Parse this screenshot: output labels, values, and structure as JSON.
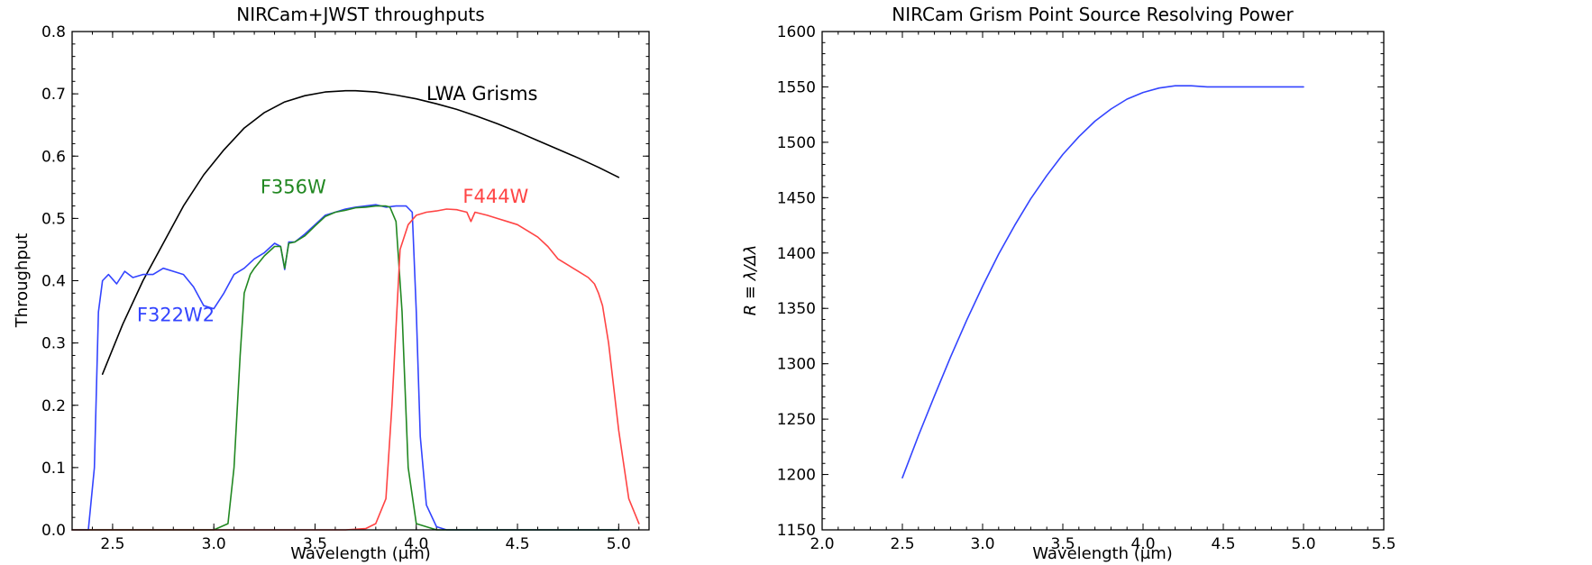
{
  "chart_data": [
    {
      "type": "line",
      "title": "NIRCam+JWST throughputs",
      "xlabel": "Wavelength (μm)",
      "ylabel": "Throughput",
      "xlim": [
        2.3,
        5.15
      ],
      "ylim": [
        0.0,
        0.8
      ],
      "x_tick_labels": [
        "2.5",
        "3.0",
        "3.5",
        "4.0",
        "4.5",
        "5.0"
      ],
      "x_ticks": [
        2.5,
        3.0,
        3.5,
        4.0,
        4.5,
        5.0
      ],
      "y_tick_labels": [
        "0.0",
        "0.1",
        "0.2",
        "0.3",
        "0.4",
        "0.5",
        "0.6",
        "0.7",
        "0.8"
      ],
      "y_ticks": [
        0.0,
        0.1,
        0.2,
        0.3,
        0.4,
        0.5,
        0.6,
        0.7,
        0.8
      ],
      "grid": false,
      "legend": "none",
      "series": [
        {
          "name": "LWA Grisms",
          "color": "#000000",
          "x": [
            2.45,
            2.55,
            2.65,
            2.75,
            2.85,
            2.95,
            3.05,
            3.15,
            3.25,
            3.35,
            3.45,
            3.55,
            3.65,
            3.7,
            3.8,
            3.9,
            4.0,
            4.1,
            4.2,
            4.3,
            4.4,
            4.5,
            4.6,
            4.7,
            4.8,
            4.9,
            5.0
          ],
          "y": [
            0.25,
            0.33,
            0.4,
            0.46,
            0.52,
            0.57,
            0.61,
            0.645,
            0.67,
            0.687,
            0.697,
            0.703,
            0.705,
            0.705,
            0.703,
            0.698,
            0.692,
            0.684,
            0.675,
            0.664,
            0.652,
            0.639,
            0.625,
            0.611,
            0.597,
            0.582,
            0.566
          ]
        },
        {
          "name": "F322W2",
          "color": "#3344ff",
          "x": [
            2.3,
            2.38,
            2.41,
            2.43,
            2.45,
            2.48,
            2.52,
            2.56,
            2.6,
            2.65,
            2.7,
            2.75,
            2.8,
            2.85,
            2.9,
            2.95,
            3.0,
            3.05,
            3.1,
            3.15,
            3.2,
            3.25,
            3.3,
            3.33,
            3.35,
            3.37,
            3.4,
            3.45,
            3.5,
            3.55,
            3.6,
            3.65,
            3.7,
            3.75,
            3.8,
            3.85,
            3.9,
            3.95,
            3.98,
            4.0,
            4.02,
            4.05,
            4.1,
            4.15,
            4.2,
            5.0
          ],
          "y": [
            0.0,
            0.0,
            0.1,
            0.35,
            0.4,
            0.41,
            0.395,
            0.415,
            0.405,
            0.41,
            0.41,
            0.42,
            0.415,
            0.41,
            0.39,
            0.36,
            0.355,
            0.38,
            0.41,
            0.42,
            0.435,
            0.445,
            0.46,
            0.455,
            0.418,
            0.462,
            0.462,
            0.475,
            0.49,
            0.505,
            0.51,
            0.515,
            0.518,
            0.52,
            0.522,
            0.518,
            0.52,
            0.52,
            0.51,
            0.35,
            0.15,
            0.04,
            0.005,
            0.0,
            0.0,
            0.0
          ]
        },
        {
          "name": "F356W",
          "color": "#228822",
          "x": [
            2.3,
            3.0,
            3.07,
            3.1,
            3.13,
            3.15,
            3.18,
            3.2,
            3.25,
            3.3,
            3.33,
            3.35,
            3.37,
            3.4,
            3.45,
            3.5,
            3.55,
            3.6,
            3.65,
            3.7,
            3.75,
            3.8,
            3.85,
            3.87,
            3.9,
            3.93,
            3.96,
            4.0,
            4.1,
            5.0
          ],
          "y": [
            0.0,
            0.0,
            0.01,
            0.1,
            0.28,
            0.38,
            0.41,
            0.42,
            0.44,
            0.455,
            0.455,
            0.42,
            0.46,
            0.462,
            0.472,
            0.488,
            0.503,
            0.51,
            0.513,
            0.517,
            0.518,
            0.52,
            0.52,
            0.518,
            0.495,
            0.35,
            0.1,
            0.01,
            0.0,
            0.0
          ]
        },
        {
          "name": "F444W",
          "color": "#ff4444",
          "x": [
            2.3,
            3.65,
            3.75,
            3.8,
            3.85,
            3.88,
            3.92,
            3.96,
            4.0,
            4.05,
            4.1,
            4.15,
            4.2,
            4.25,
            4.27,
            4.29,
            4.35,
            4.4,
            4.45,
            4.5,
            4.55,
            4.6,
            4.65,
            4.7,
            4.75,
            4.8,
            4.85,
            4.88,
            4.9,
            4.92,
            4.95,
            5.0,
            5.05,
            5.1
          ],
          "y": [
            0.0,
            0.0,
            0.002,
            0.01,
            0.05,
            0.2,
            0.45,
            0.49,
            0.505,
            0.51,
            0.512,
            0.515,
            0.514,
            0.51,
            0.495,
            0.51,
            0.505,
            0.5,
            0.495,
            0.49,
            0.48,
            0.47,
            0.455,
            0.435,
            0.425,
            0.415,
            0.405,
            0.395,
            0.38,
            0.36,
            0.3,
            0.16,
            0.05,
            0.01
          ]
        }
      ],
      "annotations": [
        {
          "text": "LWA Grisms",
          "color": "#000000",
          "x": 4.05,
          "y": 0.69
        },
        {
          "text": "F356W",
          "color": "#228822",
          "x": 3.23,
          "y": 0.54
        },
        {
          "text": "F444W",
          "color": "#ff4444",
          "x": 4.23,
          "y": 0.525
        },
        {
          "text": "F322W2",
          "color": "#3344ff",
          "x": 2.62,
          "y": 0.335
        }
      ]
    },
    {
      "type": "line",
      "title": "NIRCam Grism Point Source Resolving Power",
      "xlabel": "Wavelength (μm)",
      "ylabel": "R ≡ λ/Δλ",
      "xlim": [
        2.0,
        5.5
      ],
      "ylim": [
        1150,
        1600
      ],
      "x_tick_labels": [
        "2.0",
        "2.5",
        "3.0",
        "3.5",
        "4.0",
        "4.5",
        "5.0",
        "5.5"
      ],
      "x_ticks": [
        2.0,
        2.5,
        3.0,
        3.5,
        4.0,
        4.5,
        5.0,
        5.5
      ],
      "y_tick_labels": [
        "1150",
        "1200",
        "1250",
        "1300",
        "1350",
        "1400",
        "1450",
        "1500",
        "1550",
        "1600"
      ],
      "y_ticks": [
        1150,
        1200,
        1250,
        1300,
        1350,
        1400,
        1450,
        1500,
        1550,
        1600
      ],
      "grid": false,
      "legend": "none",
      "series": [
        {
          "color": "#3344ff",
          "x": [
            2.5,
            2.6,
            2.7,
            2.8,
            2.9,
            3.0,
            3.1,
            3.2,
            3.3,
            3.4,
            3.5,
            3.6,
            3.7,
            3.8,
            3.9,
            4.0,
            4.1,
            4.2,
            4.3,
            4.4,
            4.5,
            4.6,
            4.7,
            4.8,
            4.9,
            5.0
          ],
          "y": [
            1197,
            1235,
            1271,
            1306,
            1339,
            1370,
            1399,
            1425,
            1449,
            1470,
            1489,
            1505,
            1519,
            1530,
            1539,
            1545,
            1549,
            1551,
            1551,
            1550,
            1550,
            1550,
            1550,
            1550,
            1550,
            1550
          ]
        }
      ],
      "annotations": []
    }
  ]
}
